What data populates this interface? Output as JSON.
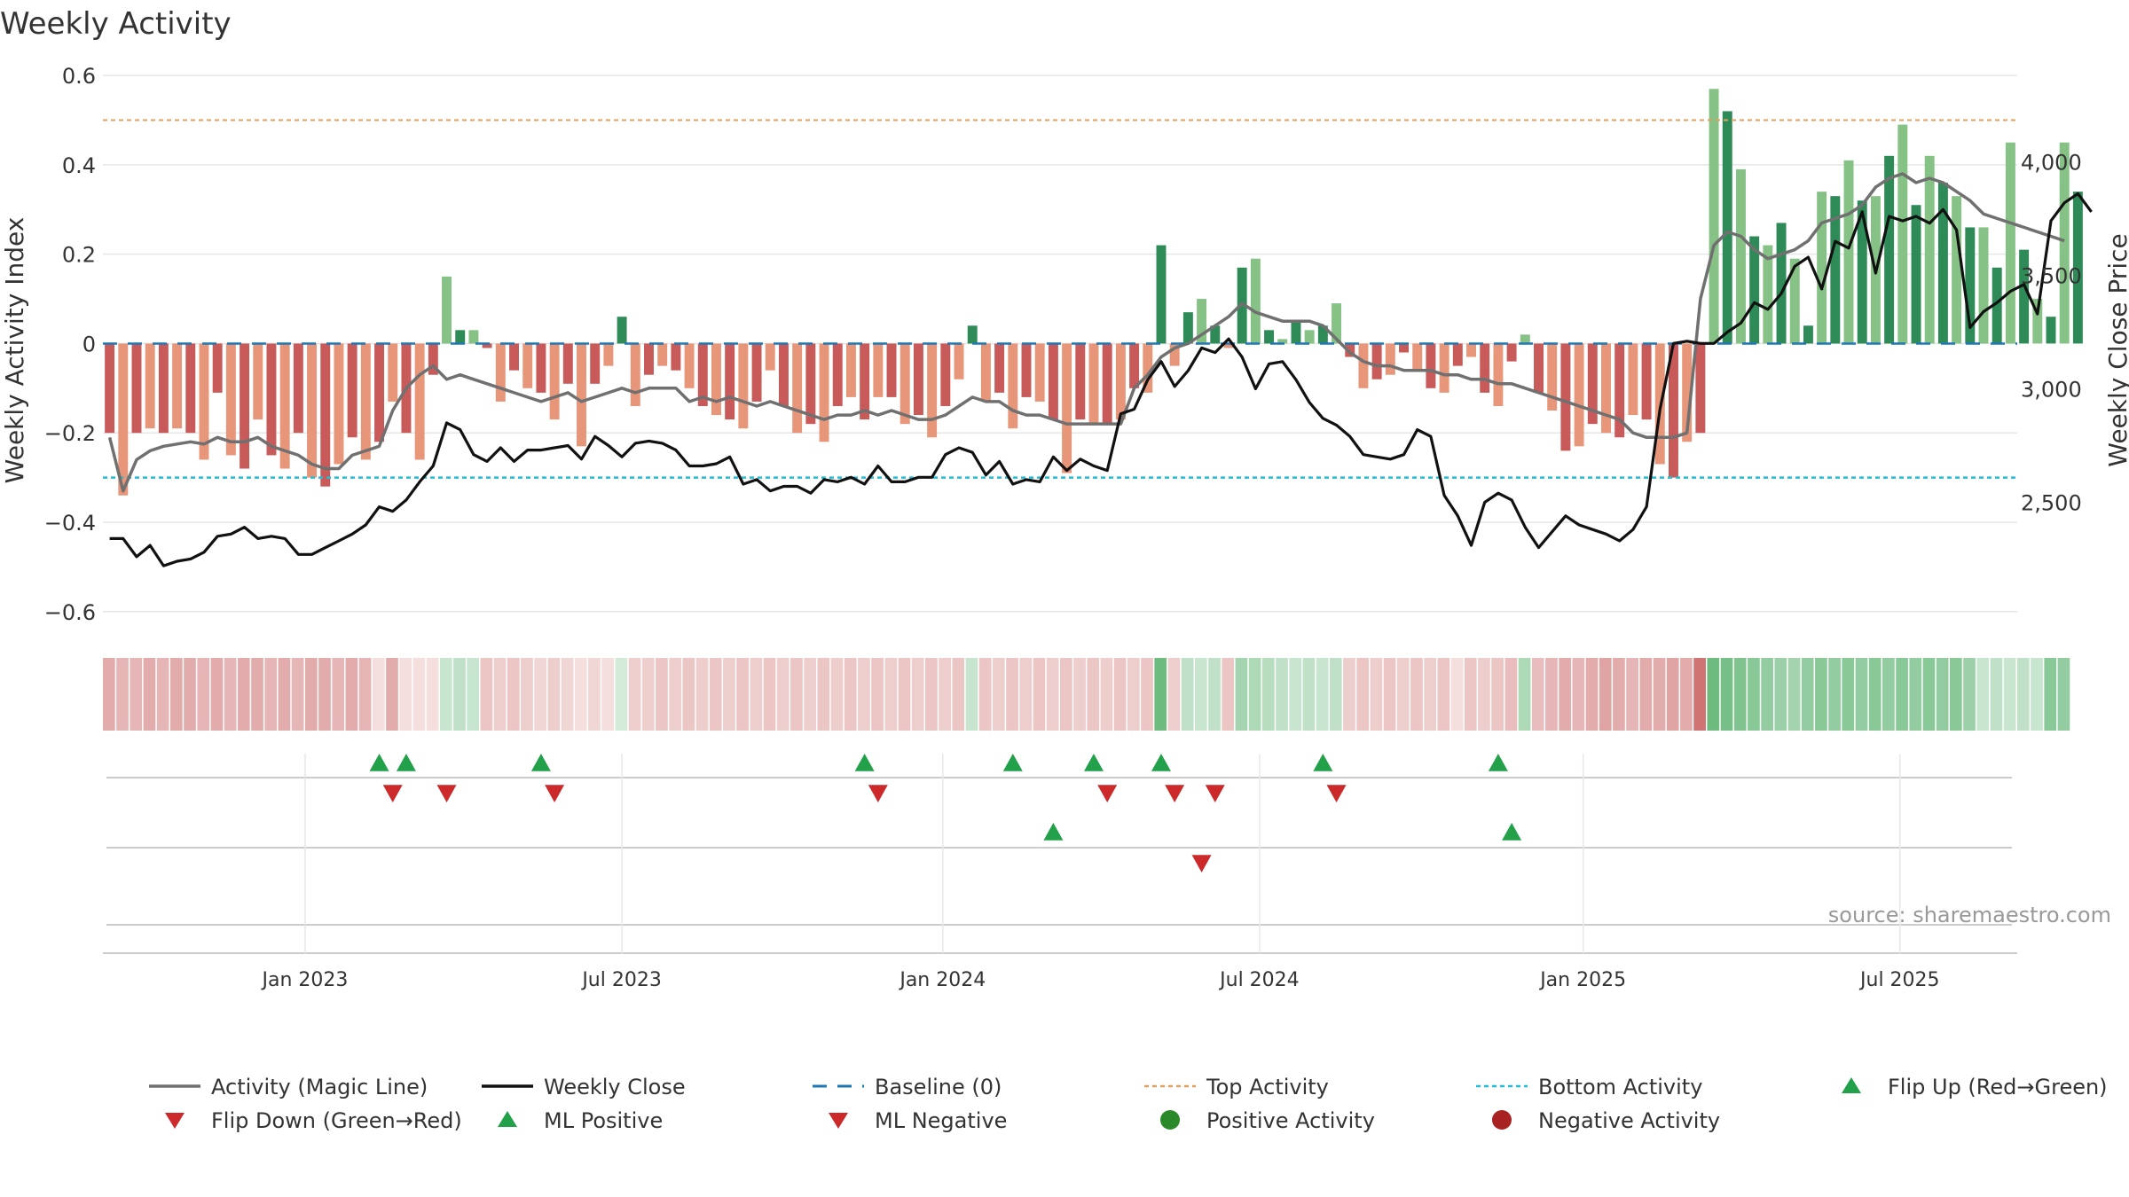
{
  "chart_data": {
    "type": "bar",
    "title": "Weekly Activity",
    "ylabel_left": "Weekly Activity Index",
    "ylabel_right": "Weekly Close Price",
    "source": "source: sharemaestro.com",
    "x_start_week": 0,
    "week_count": 142,
    "ylim_left": [
      -0.66,
      0.63
    ],
    "ylim_right": [
      1900,
      4440
    ],
    "left_ticks": [
      {
        "v": 0.6,
        "label": "0.6"
      },
      {
        "v": 0.4,
        "label": "0.4"
      },
      {
        "v": 0.2,
        "label": "0.2"
      },
      {
        "v": 0,
        "label": "0"
      },
      {
        "v": -0.2,
        "label": "−0.2"
      },
      {
        "v": -0.4,
        "label": "−0.4"
      },
      {
        "v": -0.6,
        "label": "−0.6"
      }
    ],
    "right_ticks": [
      {
        "v": 4000,
        "label": "4,000"
      },
      {
        "v": 3500,
        "label": "3,500"
      },
      {
        "v": 3000,
        "label": "3,000"
      },
      {
        "v": 2500,
        "label": "2,500"
      }
    ],
    "x_ticks": [
      {
        "week": 14.5,
        "label": "Jan 2023"
      },
      {
        "week": 38,
        "label": "Jul 2023"
      },
      {
        "week": 61.8,
        "label": "Jan 2024"
      },
      {
        "week": 85.3,
        "label": "Jul 2024"
      },
      {
        "week": 109.3,
        "label": "Jan 2025"
      },
      {
        "week": 132.8,
        "label": "Jul 2025"
      }
    ],
    "top_activity": 0.5,
    "bottom_activity": -0.3,
    "baseline": 0,
    "activity": [
      -0.2,
      -0.34,
      -0.2,
      -0.19,
      -0.2,
      -0.19,
      -0.2,
      -0.26,
      -0.11,
      -0.25,
      -0.28,
      -0.17,
      -0.25,
      -0.28,
      -0.2,
      -0.3,
      -0.32,
      -0.27,
      -0.21,
      -0.26,
      -0.22,
      -0.13,
      -0.2,
      -0.26,
      -0.07,
      0.15,
      0.03,
      0.03,
      -0.01,
      -0.13,
      -0.06,
      -0.1,
      -0.11,
      -0.17,
      -0.09,
      -0.23,
      -0.09,
      -0.05,
      0.06,
      -0.14,
      -0.07,
      -0.05,
      -0.06,
      -0.1,
      -0.14,
      -0.16,
      -0.17,
      -0.19,
      -0.13,
      -0.06,
      -0.14,
      -0.2,
      -0.18,
      -0.22,
      -0.14,
      -0.12,
      -0.17,
      -0.12,
      -0.12,
      -0.18,
      -0.16,
      -0.21,
      -0.14,
      -0.08,
      0.04,
      -0.13,
      -0.11,
      -0.19,
      -0.12,
      -0.13,
      -0.17,
      -0.29,
      -0.17,
      -0.18,
      -0.18,
      -0.17,
      -0.1,
      -0.11,
      0.22,
      -0.05,
      0.07,
      0.1,
      0.04,
      -0.01,
      0.17,
      0.19,
      0.03,
      0.01,
      0.05,
      0.03,
      0.04,
      0.09,
      -0.03,
      -0.1,
      -0.08,
      -0.07,
      -0.02,
      -0.06,
      -0.1,
      -0.11,
      -0.05,
      -0.03,
      -0.11,
      -0.14,
      -0.04,
      0.02,
      -0.11,
      -0.15,
      -0.24,
      -0.23,
      -0.18,
      -0.2,
      -0.21,
      -0.16,
      -0.17,
      -0.27,
      -0.3,
      -0.22,
      -0.2,
      0.57,
      0.52,
      0.39,
      0.24,
      0.22,
      0.27,
      0.19,
      0.04,
      0.34,
      0.33,
      0.41,
      0.32,
      0.33,
      0.42,
      0.49,
      0.31,
      0.42,
      0.36,
      0.33,
      0.26,
      0.26,
      0.17,
      0.45,
      0.21,
      0.1,
      0.06,
      0.45,
      0.34
    ],
    "magic_line": [
      -0.21,
      -0.33,
      -0.26,
      -0.24,
      -0.23,
      -0.225,
      -0.22,
      -0.225,
      -0.21,
      -0.22,
      -0.22,
      -0.21,
      -0.23,
      -0.24,
      -0.25,
      -0.27,
      -0.28,
      -0.28,
      -0.25,
      -0.24,
      -0.23,
      -0.15,
      -0.1,
      -0.07,
      -0.05,
      -0.08,
      -0.07,
      -0.08,
      -0.09,
      -0.1,
      -0.11,
      -0.12,
      -0.13,
      -0.12,
      -0.11,
      -0.13,
      -0.12,
      -0.11,
      -0.1,
      -0.11,
      -0.1,
      -0.1,
      -0.1,
      -0.13,
      -0.12,
      -0.13,
      -0.12,
      -0.13,
      -0.14,
      -0.13,
      -0.14,
      -0.15,
      -0.16,
      -0.17,
      -0.16,
      -0.16,
      -0.15,
      -0.16,
      -0.15,
      -0.16,
      -0.17,
      -0.17,
      -0.16,
      -0.14,
      -0.12,
      -0.13,
      -0.13,
      -0.15,
      -0.16,
      -0.16,
      -0.17,
      -0.18,
      -0.18,
      -0.18,
      -0.18,
      -0.18,
      -0.1,
      -0.07,
      -0.03,
      -0.01,
      0.0,
      0.02,
      0.04,
      0.06,
      0.09,
      0.07,
      0.06,
      0.05,
      0.05,
      0.05,
      0.04,
      0.01,
      -0.02,
      -0.04,
      -0.05,
      -0.05,
      -0.06,
      -0.06,
      -0.06,
      -0.07,
      -0.07,
      -0.08,
      -0.08,
      -0.09,
      -0.09,
      -0.1,
      -0.11,
      -0.12,
      -0.13,
      -0.14,
      -0.15,
      -0.16,
      -0.17,
      -0.2,
      -0.21,
      -0.21,
      -0.21,
      -0.2,
      0.1,
      0.22,
      0.25,
      0.24,
      0.21,
      0.19,
      0.2,
      0.21,
      0.23,
      0.27,
      0.28,
      0.29,
      0.31,
      0.35,
      0.37,
      0.38,
      0.36,
      0.37,
      0.36,
      0.34,
      0.32,
      0.29,
      0.28,
      0.27,
      0.26,
      0.25,
      0.24,
      0.23
    ],
    "weekly_close": [
      2340,
      2340,
      2260,
      2310,
      2220,
      2240,
      2250,
      2280,
      2350,
      2360,
      2390,
      2340,
      2350,
      2340,
      2270,
      2270,
      2300,
      2330,
      2360,
      2400,
      2480,
      2460,
      2510,
      2590,
      2660,
      2850,
      2820,
      2710,
      2680,
      2740,
      2680,
      2730,
      2730,
      2740,
      2750,
      2690,
      2790,
      2750,
      2700,
      2760,
      2770,
      2760,
      2730,
      2660,
      2660,
      2670,
      2700,
      2580,
      2600,
      2550,
      2570,
      2570,
      2540,
      2600,
      2590,
      2610,
      2580,
      2660,
      2590,
      2590,
      2610,
      2610,
      2710,
      2740,
      2720,
      2620,
      2680,
      2580,
      2600,
      2590,
      2700,
      2640,
      2690,
      2660,
      2640,
      2890,
      2910,
      3040,
      3120,
      3010,
      3080,
      3180,
      3160,
      3220,
      3140,
      3000,
      3110,
      3120,
      3040,
      2940,
      2870,
      2840,
      2790,
      2710,
      2700,
      2690,
      2710,
      2820,
      2790,
      2530,
      2440,
      2310,
      2500,
      2540,
      2510,
      2390,
      2300,
      2370,
      2440,
      2400,
      2380,
      2360,
      2330,
      2380,
      2480,
      2910,
      3200,
      3210,
      3200,
      3200,
      3250,
      3290,
      3380,
      3350,
      3420,
      3540,
      3580,
      3440,
      3650,
      3620,
      3780,
      3510,
      3760,
      3740,
      3760,
      3730,
      3790,
      3700,
      3270,
      3340,
      3380,
      3430,
      3460,
      3330,
      3740,
      3820,
      3860,
      3780
    ],
    "colorbar_intensity": [
      0.5,
      0.45,
      0.45,
      0.5,
      0.45,
      0.5,
      0.5,
      0.45,
      0.5,
      0.45,
      0.5,
      0.5,
      0.45,
      0.5,
      0.45,
      0.5,
      0.5,
      0.45,
      0.5,
      0.45,
      0.2,
      0.5,
      0.2,
      0.2,
      0.2,
      0.3,
      0.35,
      0.3,
      0.35,
      0.3,
      0.35,
      0.3,
      0.25,
      0.3,
      0.25,
      0.2,
      0.25,
      0.2,
      0.25,
      0.3,
      0.3,
      0.35,
      0.3,
      0.35,
      0.3,
      0.35,
      0.3,
      0.35,
      0.3,
      0.35,
      0.3,
      0.35,
      0.3,
      0.35,
      0.3,
      0.35,
      0.3,
      0.35,
      0.3,
      0.35,
      0.3,
      0.35,
      0.3,
      0.35,
      0.3,
      0.35,
      0.3,
      0.35,
      0.3,
      0.35,
      0.3,
      0.35,
      0.3,
      0.35,
      0.3,
      0.35,
      0.3,
      0.35,
      0.8,
      0.3,
      0.35,
      0.3,
      0.35,
      0.35,
      0.5,
      0.45,
      0.4,
      0.35,
      0.3,
      0.35,
      0.3,
      0.35,
      0.3,
      0.35,
      0.3,
      0.35,
      0.3,
      0.35,
      0.3,
      0.35,
      0.2,
      0.35,
      0.3,
      0.35,
      0.4,
      0.45,
      0.4,
      0.45,
      0.5,
      0.45,
      0.5,
      0.55,
      0.5,
      0.45,
      0.5,
      0.5,
      0.55,
      0.5,
      0.85,
      0.8,
      0.75,
      0.7,
      0.65,
      0.6,
      0.55,
      0.5,
      0.6,
      0.65,
      0.6,
      0.65,
      0.6,
      0.65,
      0.6,
      0.65,
      0.6,
      0.65,
      0.6,
      0.65,
      0.55,
      0.3,
      0.35,
      0.3,
      0.35,
      0.3,
      0.65,
      0.6
    ],
    "flip_up_weeks": [
      20,
      22,
      32,
      56,
      67,
      73,
      78,
      90,
      103
    ],
    "flip_down_weeks": [
      21,
      25,
      33,
      57,
      74,
      79,
      82,
      91
    ],
    "ml_positive_weeks": [
      70,
      104
    ],
    "ml_negative_weeks": [
      81
    ],
    "legend": [
      {
        "key": "magic",
        "label": "Activity (Magic Line)"
      },
      {
        "key": "close",
        "label": "Weekly Close"
      },
      {
        "key": "baseline",
        "label": "Baseline (0)"
      },
      {
        "key": "top",
        "label": "Top Activity"
      },
      {
        "key": "bottom",
        "label": "Bottom Activity"
      },
      {
        "key": "flipup",
        "label": "Flip Up (Red→Green)"
      },
      {
        "key": "flipdown",
        "label": "Flip Down (Green→Red)"
      },
      {
        "key": "mlpos",
        "label": "ML Positive"
      },
      {
        "key": "mlneg",
        "label": "ML Negative"
      },
      {
        "key": "posact",
        "label": "Positive Activity"
      },
      {
        "key": "negact",
        "label": "Negative Activity"
      }
    ],
    "colors": {
      "pos_dark": "#2e8b57",
      "pos_light": "#86c286",
      "neg_dark": "#c85a5a",
      "neg_light": "#e8967a",
      "magic": "#707070",
      "close": "#111111",
      "baseline": "#1f77b4",
      "top": "#e0a060",
      "bottom": "#22bcd4",
      "marker_green": "#22a04a",
      "marker_red": "#cc2a2a",
      "grid": "#e6e6e6",
      "text": "#333333"
    }
  }
}
